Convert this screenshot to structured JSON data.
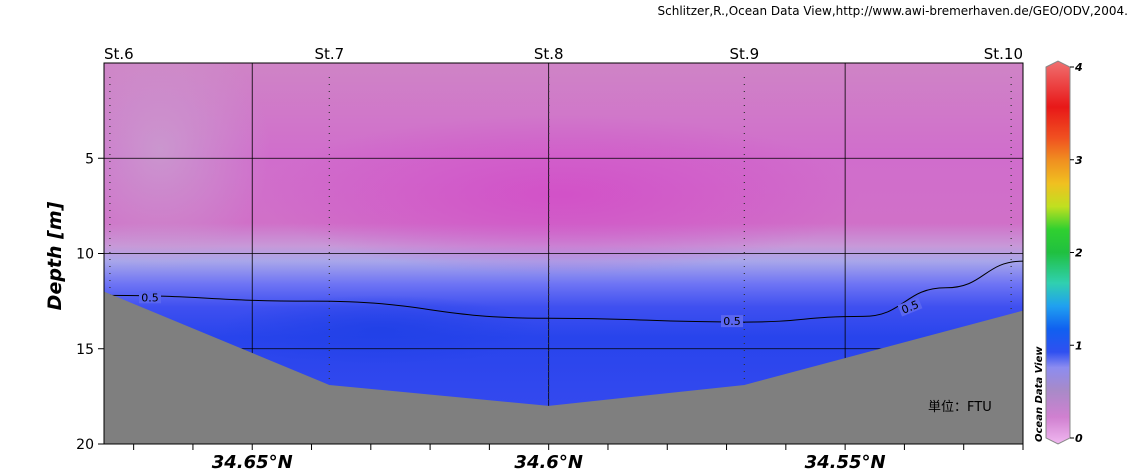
{
  "credit": "Schlitzer,R.,Ocean Data View,http://www.awi-bremerhaven.de/GEO/ODV,2004.",
  "chart_data": {
    "type": "heatmap",
    "title": "",
    "xlabel": "",
    "ylabel": "Depth [m]",
    "ylim": [
      20,
      0
    ],
    "yticks": [
      5,
      10,
      15,
      20
    ],
    "xticks": [
      "34.65°N",
      "34.6°N",
      "34.55°N"
    ],
    "x_tick_values": [
      34.65,
      34.6,
      34.55
    ],
    "xlim": [
      34.675,
      34.52
    ],
    "grid": true,
    "stations": [
      {
        "name": "St.6",
        "lat": 34.674
      },
      {
        "name": "St.7",
        "lat": 34.637
      },
      {
        "name": "St.8",
        "lat": 34.6
      },
      {
        "name": "St.9",
        "lat": 34.567
      },
      {
        "name": "St.10",
        "lat": 34.522
      }
    ],
    "bottom_profile": [
      {
        "lat": 34.675,
        "depth": 12.0
      },
      {
        "lat": 34.637,
        "depth": 16.9
      },
      {
        "lat": 34.6,
        "depth": 18.0
      },
      {
        "lat": 34.567,
        "depth": 16.9
      },
      {
        "lat": 34.52,
        "depth": 13.0
      }
    ],
    "contour_0_5": [
      {
        "lat": 34.675,
        "depth": 12.2
      },
      {
        "lat": 34.64,
        "depth": 12.5
      },
      {
        "lat": 34.6,
        "depth": 13.4
      },
      {
        "lat": 34.567,
        "depth": 13.6
      },
      {
        "lat": 34.547,
        "depth": 13.3
      },
      {
        "lat": 34.533,
        "depth": 11.8
      },
      {
        "lat": 34.52,
        "depth": 10.4
      }
    ],
    "contour_labels": [
      "0.5",
      "0.5",
      "0.5"
    ],
    "colorbar": {
      "min": 0,
      "max": 4,
      "ticks": [
        "0",
        "1",
        "2",
        "3",
        "4"
      ],
      "label": "Ocean Data View",
      "unit_note": "単位：FTU"
    },
    "colors": {
      "land": "#7f7f7f",
      "surface_pink": "#cc70c8",
      "deep_blue": "#2a48ef"
    }
  }
}
